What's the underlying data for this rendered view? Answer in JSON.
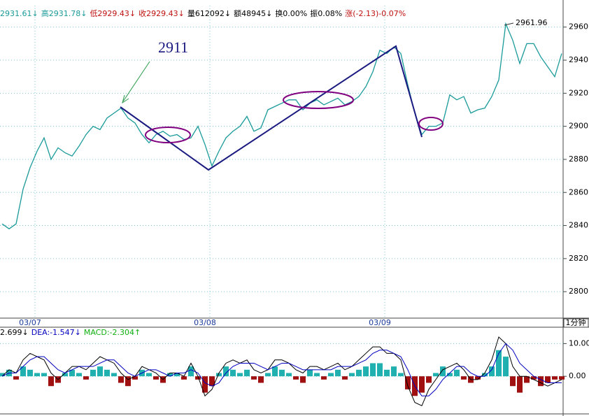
{
  "chart_data": [
    {
      "type": "line",
      "info": [
        {
          "text": "2931.61↓",
          "color": "#1a9a9a"
        },
        {
          "text": "高2931.78↓",
          "color": "#1a9a9a"
        },
        {
          "text": "低2929.43↓",
          "color": "#c01010"
        },
        {
          "text": "收2929.43↓",
          "color": "#c01010"
        },
        {
          "text": "量612092↓",
          "color": "#000000"
        },
        {
          "text": "额48945↓",
          "color": "#000000"
        },
        {
          "text": "换0.00%",
          "color": "#000000"
        },
        {
          "text": "振0.08%",
          "color": "#000000"
        },
        {
          "text": "涨(-2.13)-0.07%",
          "color": "#c01010"
        }
      ],
      "annotations": [
        "2911",
        "2961.96"
      ],
      "period": "1分钟",
      "categories": [
        null,
        null,
        null,
        null,
        "03/07",
        null,
        null,
        null,
        null,
        null,
        null,
        null,
        null,
        null,
        null,
        null,
        null,
        null,
        null,
        null,
        null,
        null,
        null,
        null,
        null,
        null,
        null,
        null,
        null,
        "03/08",
        null,
        null,
        null,
        null,
        null,
        null,
        null,
        null,
        null,
        null,
        null,
        null,
        null,
        null,
        null,
        null,
        null,
        null,
        null,
        null,
        null,
        null,
        null,
        null,
        "03/09",
        null,
        null,
        null,
        null,
        null,
        null,
        null,
        null,
        null,
        null,
        null,
        null,
        null,
        null,
        null,
        null,
        null,
        null,
        null,
        null,
        null,
        null,
        null,
        null,
        null,
        null
      ],
      "series": [
        {
          "color": "#1a9a9a",
          "values": [
            2841,
            2838,
            2841,
            2862,
            2875,
            2885,
            2893,
            2880,
            2887,
            2884,
            2882,
            2888,
            2895,
            2900,
            2898,
            2905,
            2908,
            2911,
            2905,
            2902,
            2895,
            2890,
            2895,
            2897,
            2894,
            2895,
            2892,
            2893,
            2900,
            2889,
            2876,
            2885,
            2893,
            2897,
            2900,
            2906,
            2897,
            2899,
            2910,
            2912,
            2914,
            2916,
            2916,
            2910,
            2914,
            2916,
            2913,
            2915,
            2917,
            2913,
            2915,
            2918,
            2924,
            2933,
            2946,
            2944,
            2948,
            2944,
            2925,
            2908,
            2895,
            2900,
            2900,
            2902,
            2919,
            2916,
            2918,
            2908,
            2910,
            2911,
            2918,
            2928,
            2962,
            2952,
            2938,
            2950,
            2950,
            2942,
            2936,
            2930,
            2944
          ]
        }
      ],
      "ylim": [
        2784,
        2973
      ],
      "yticks": [
        {
          "value": 2800,
          "label": "2800.0"
        },
        {
          "value": 2820,
          "label": "2820.0"
        },
        {
          "value": 2840,
          "label": "2840.0"
        },
        {
          "value": 2860,
          "label": "2860.0"
        },
        {
          "value": 2880,
          "label": "2880.0"
        },
        {
          "value": 2900,
          "label": "2900.0"
        },
        {
          "value": 2920,
          "label": "2920.0"
        },
        {
          "value": 2940,
          "label": "2940.0"
        },
        {
          "value": 2960,
          "label": "2960.0"
        }
      ],
      "grid": true
    },
    {
      "type": "macd",
      "info": [
        {
          "text": "2.699↓",
          "color": "#000000"
        },
        {
          "text": "DEA:-1.547↓",
          "color": "#0000c0"
        },
        {
          "text": "MACD:-2.304↑",
          "color": "#10b010"
        }
      ],
      "series": [
        {
          "color": "#000000",
          "values": [
            0,
            2,
            1,
            5,
            7,
            6,
            5,
            1,
            -1,
            1,
            3,
            3,
            2,
            4,
            6,
            5,
            4,
            1,
            -1,
            0,
            3,
            2,
            1,
            -1,
            1,
            1,
            0,
            4,
            0,
            -6,
            -4,
            1,
            4,
            5,
            4,
            5,
            2,
            1,
            2,
            5,
            5,
            4,
            2,
            1,
            3,
            3,
            2,
            3,
            4,
            2,
            3,
            5,
            7,
            9,
            9,
            7,
            7,
            5,
            -3,
            -8,
            -9,
            -4,
            -1,
            2,
            3,
            4,
            2,
            -1,
            -1,
            1,
            5,
            12,
            10,
            3,
            0,
            0,
            -1,
            -2,
            -3,
            -2,
            -1
          ]
        },
        {
          "color": "#0000c0",
          "values": [
            0,
            1,
            1,
            3,
            5,
            6,
            6,
            4,
            2,
            1,
            2,
            3,
            3,
            3,
            4,
            5,
            5,
            3,
            1,
            0,
            1,
            2,
            2,
            1,
            0,
            1,
            1,
            2,
            1,
            -2,
            -3,
            -2,
            1,
            3,
            4,
            4,
            4,
            3,
            2,
            3,
            4,
            4,
            3,
            2,
            2,
            2,
            2,
            2,
            3,
            3,
            3,
            4,
            5,
            7,
            8,
            8,
            7,
            6,
            2,
            -3,
            -6,
            -6,
            -4,
            -1,
            1,
            3,
            3,
            1,
            0,
            0,
            2,
            7,
            10,
            8,
            4,
            2,
            0,
            -1,
            -2,
            -2,
            -2
          ]
        }
      ],
      "bars": {
        "up_color": "#20b0b0",
        "down_color": "#a01010",
        "values": [
          1,
          2,
          -1,
          3,
          2,
          1,
          1,
          -3,
          -2,
          1,
          2,
          1,
          -1,
          2,
          3,
          2,
          1,
          -2,
          -3,
          -1,
          2,
          1,
          -1,
          -2,
          1,
          1,
          -1,
          3,
          -1,
          -5,
          -3,
          1,
          3,
          2,
          1,
          2,
          -1,
          -2,
          1,
          3,
          2,
          1,
          -1,
          -2,
          2,
          1,
          -1,
          1,
          2,
          -1,
          1,
          2,
          3,
          4,
          4,
          2,
          3,
          1,
          -4,
          -6,
          -5,
          -2,
          1,
          3,
          1,
          2,
          -1,
          -2,
          -1,
          1,
          3,
          8,
          6,
          -3,
          -5,
          -2,
          -1,
          -3,
          -2,
          -1,
          -1
        ]
      },
      "ylim": [
        -11.5,
        15
      ],
      "yticks": [
        {
          "value": 0,
          "label": "0.00"
        },
        {
          "value": 10,
          "label": "10.00"
        }
      ],
      "grid": true
    }
  ]
}
